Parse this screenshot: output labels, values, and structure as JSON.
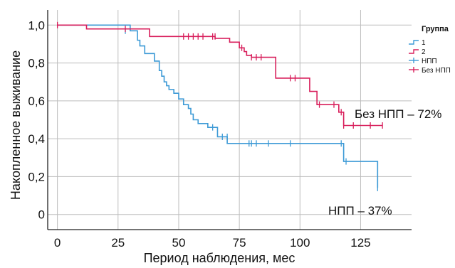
{
  "chart_data": {
    "type": "line",
    "subtype": "kaplan-meier",
    "xlabel": "Период наблюдения, мес",
    "ylabel": "Накопленное выживание",
    "xlim": [
      -4,
      146
    ],
    "ylim": [
      -0.08,
      1.08
    ],
    "xticks": [
      0,
      25,
      50,
      75,
      100,
      125
    ],
    "xtick_labels": [
      "0",
      "25",
      "50",
      "75",
      "100",
      "125"
    ],
    "yticks": [
      0,
      0.2,
      0.4,
      0.6,
      0.8,
      1.0
    ],
    "ytick_labels": [
      "0",
      "0,2",
      "0,4",
      "0,6",
      "0,8",
      "1,0"
    ],
    "grid": true,
    "legend": {
      "title": "Группа",
      "position": "top-right",
      "entries": [
        {
          "label": "1",
          "kind": "line",
          "series": 0
        },
        {
          "label": "2",
          "kind": "line",
          "series": 1
        },
        {
          "label": "НПП",
          "kind": "censor",
          "series": 0
        },
        {
          "label": "Без НПП",
          "kind": "censor",
          "series": 1
        }
      ]
    },
    "series": [
      {
        "name": "1",
        "color": "#3d9ad6",
        "steps": [
          [
            0,
            1.0
          ],
          [
            30,
            0.97
          ],
          [
            33,
            0.92
          ],
          [
            34,
            0.89
          ],
          [
            36,
            0.85
          ],
          [
            40,
            0.81
          ],
          [
            42,
            0.76
          ],
          [
            43,
            0.73
          ],
          [
            44,
            0.7
          ],
          [
            45,
            0.68
          ],
          [
            46,
            0.66
          ],
          [
            48,
            0.64
          ],
          [
            50,
            0.61
          ],
          [
            52,
            0.58
          ],
          [
            54,
            0.56
          ],
          [
            55,
            0.53
          ],
          [
            56,
            0.5
          ],
          [
            58,
            0.48
          ],
          [
            62,
            0.46
          ],
          [
            66,
            0.41
          ],
          [
            70,
            0.375
          ],
          [
            118,
            0.28
          ],
          [
            132,
            0.14
          ]
        ],
        "censored": [
          [
            28,
            0.97
          ],
          [
            64,
            0.46
          ],
          [
            68,
            0.41
          ],
          [
            70,
            0.41
          ],
          [
            79,
            0.375
          ],
          [
            80,
            0.375
          ],
          [
            82,
            0.375
          ],
          [
            87,
            0.375
          ],
          [
            96,
            0.375
          ],
          [
            117,
            0.375
          ],
          [
            119,
            0.28
          ],
          [
            132,
            0.14
          ]
        ]
      },
      {
        "name": "2",
        "color": "#d81e5b",
        "steps": [
          [
            0,
            1.0
          ],
          [
            12,
            0.98
          ],
          [
            38,
            0.94
          ],
          [
            65,
            0.93
          ],
          [
            71,
            0.91
          ],
          [
            75,
            0.88
          ],
          [
            77,
            0.86
          ],
          [
            78,
            0.84
          ],
          [
            80,
            0.83
          ],
          [
            90,
            0.72
          ],
          [
            104,
            0.65
          ],
          [
            107,
            0.58
          ],
          [
            116,
            0.54
          ],
          [
            118,
            0.47
          ]
        ],
        "censored": [
          [
            0,
            1.0
          ],
          [
            28,
            0.98
          ],
          [
            52,
            0.94
          ],
          [
            54,
            0.94
          ],
          [
            56,
            0.94
          ],
          [
            58,
            0.94
          ],
          [
            60,
            0.94
          ],
          [
            64,
            0.94
          ],
          [
            65,
            0.94
          ],
          [
            76,
            0.88
          ],
          [
            80,
            0.83
          ],
          [
            82,
            0.83
          ],
          [
            84,
            0.83
          ],
          [
            96,
            0.72
          ],
          [
            98,
            0.72
          ],
          [
            108,
            0.58
          ],
          [
            114,
            0.58
          ],
          [
            117,
            0.54
          ],
          [
            118,
            0.47
          ],
          [
            122,
            0.47
          ],
          [
            129,
            0.47
          ],
          [
            134,
            0.47
          ]
        ]
      }
    ],
    "annotations": [
      {
        "text": "Без НПП – 72%",
        "x": 120,
        "y": 0.55
      },
      {
        "text": "НПП – 37%",
        "x": 116,
        "y": 0.05
      }
    ]
  }
}
